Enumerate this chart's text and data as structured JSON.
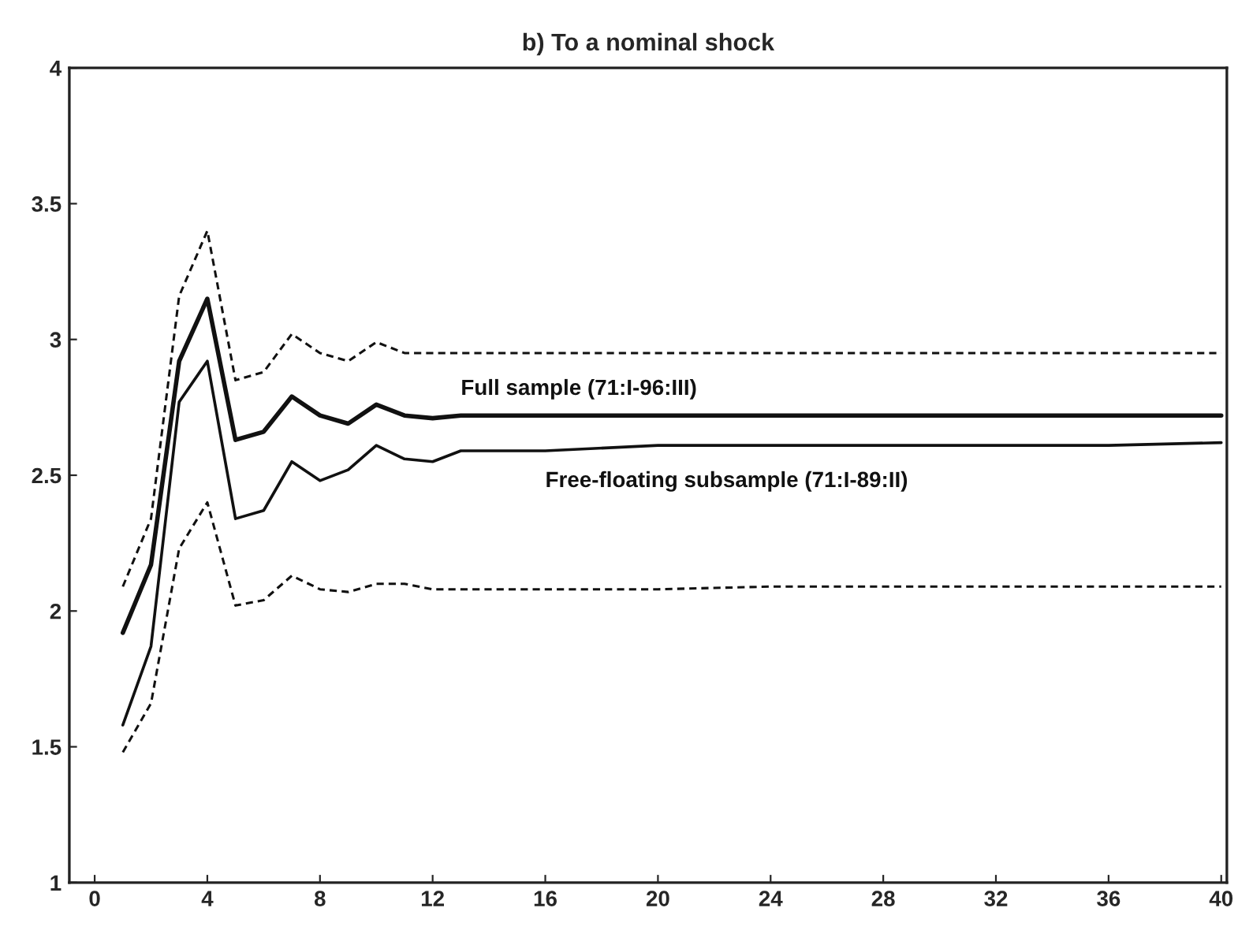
{
  "chart_data": {
    "type": "line",
    "title": "b) To a nominal shock",
    "series": [
      {
        "name": "Full sample (71:I-96:III)",
        "color": "#111111",
        "line_style": "solid",
        "x": [
          1,
          2,
          3,
          4,
          5,
          6,
          7,
          8,
          9,
          10,
          11,
          12,
          13,
          16,
          20,
          24,
          28,
          32,
          36,
          40
        ],
        "values": [
          1.92,
          2.17,
          2.92,
          3.15,
          2.63,
          2.66,
          2.79,
          2.72,
          2.69,
          2.76,
          2.72,
          2.71,
          2.72,
          2.72,
          2.72,
          2.72,
          2.72,
          2.72,
          2.72,
          2.72
        ]
      },
      {
        "name": "Free-floating subsample (71:I-89:II)",
        "color": "#111111",
        "line_style": "solid",
        "x": [
          1,
          2,
          3,
          4,
          5,
          6,
          7,
          8,
          9,
          10,
          11,
          12,
          13,
          16,
          20,
          24,
          28,
          32,
          36,
          40
        ],
        "values": [
          1.58,
          1.87,
          2.77,
          2.92,
          2.34,
          2.37,
          2.55,
          2.48,
          2.52,
          2.61,
          2.56,
          2.55,
          2.59,
          2.59,
          2.61,
          2.61,
          2.61,
          2.61,
          2.61,
          2.62
        ]
      },
      {
        "color": "#111111",
        "line_style": "dashed",
        "x": [
          1,
          2,
          3,
          4,
          5,
          6,
          7,
          8,
          9,
          10,
          11,
          12,
          13,
          16,
          20,
          24,
          28,
          32,
          36,
          40
        ],
        "values": [
          2.09,
          2.34,
          3.16,
          3.4,
          2.85,
          2.88,
          3.02,
          2.95,
          2.92,
          2.99,
          2.95,
          2.95,
          2.95,
          2.95,
          2.95,
          2.95,
          2.95,
          2.95,
          2.95,
          2.95
        ]
      },
      {
        "color": "#111111",
        "line_style": "dashed",
        "x": [
          1,
          2,
          3,
          4,
          5,
          6,
          7,
          8,
          9,
          10,
          11,
          12,
          13,
          16,
          20,
          24,
          28,
          32,
          36,
          40
        ],
        "values": [
          1.48,
          1.66,
          2.23,
          2.4,
          2.02,
          2.04,
          2.13,
          2.08,
          2.07,
          2.1,
          2.1,
          2.08,
          2.08,
          2.08,
          2.08,
          2.09,
          2.09,
          2.09,
          2.09,
          2.09
        ]
      }
    ],
    "xlim": [
      -0.9,
      40.2
    ],
    "xticks": [
      0,
      4,
      8,
      12,
      16,
      20,
      24,
      28,
      32,
      36,
      40
    ],
    "ylim": [
      1,
      4
    ],
    "yticks": [
      1,
      1.5,
      2,
      2.5,
      3,
      3.5,
      4
    ],
    "grid": false,
    "legend": false
  }
}
